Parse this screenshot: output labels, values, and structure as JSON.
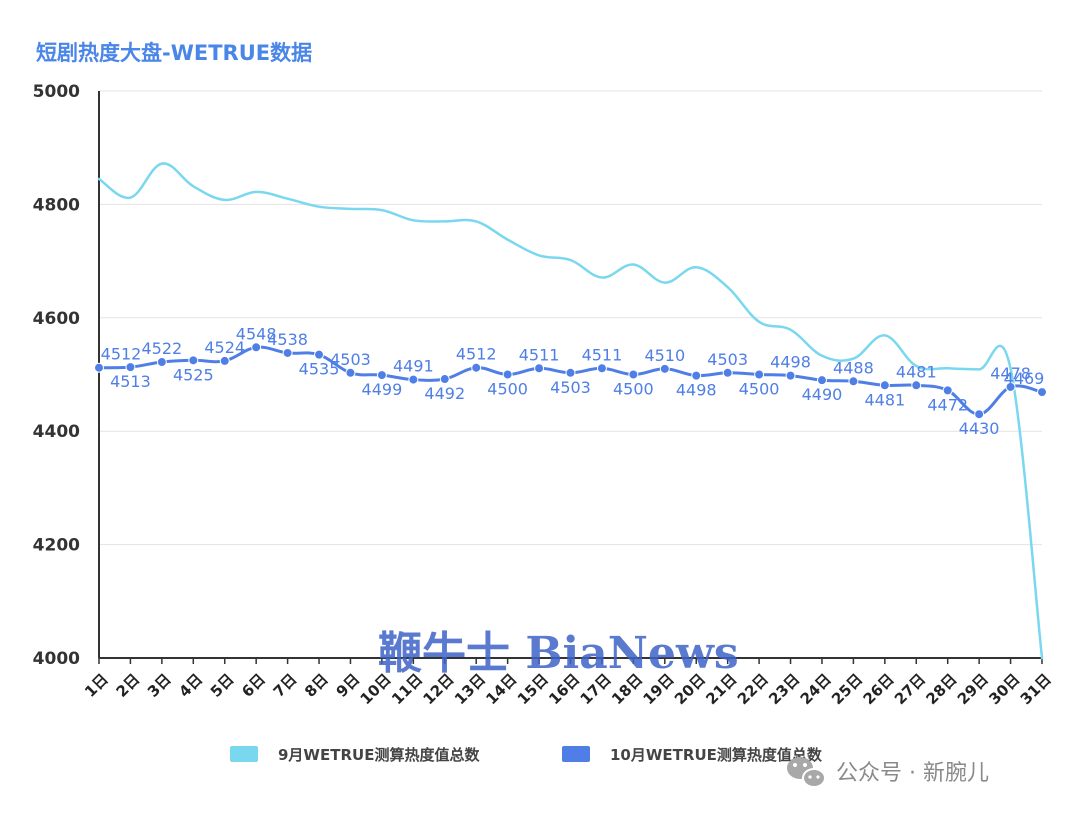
{
  "chart_data": {
    "type": "line",
    "title": "短剧热度大盘-WETRUE数据",
    "xlabel": "",
    "ylabel": "",
    "ylim": [
      4000,
      5000
    ],
    "yticks": [
      4000,
      4200,
      4400,
      4600,
      4800,
      5000
    ],
    "grid": true,
    "legend_position": "bottom",
    "categories": [
      "1日",
      "2日",
      "3日",
      "4日",
      "5日",
      "6日",
      "7日",
      "8日",
      "9日",
      "10日",
      "11日",
      "12日",
      "13日",
      "14日",
      "15日",
      "16日",
      "17日",
      "18日",
      "19日",
      "20日",
      "21日",
      "22日",
      "23日",
      "24日",
      "25日",
      "26日",
      "27日",
      "28日",
      "29日",
      "30日",
      "31日"
    ],
    "series": [
      {
        "name": "9月WETRUE测算热度值总数",
        "color": "#7ad7f0",
        "values": [
          4845,
          4812,
          4872,
          4832,
          4808,
          4822,
          4810,
          4796,
          4792,
          4790,
          4772,
          4770,
          4770,
          4738,
          4710,
          4702,
          4671,
          4694,
          4662,
          4689,
          4654,
          4593,
          4579,
          4533,
          4528,
          4569,
          4515,
          4511,
          4509,
          4510,
          4000
        ],
        "show_markers": false
      },
      {
        "name": "10月WETRUE测算热度值总数",
        "color": "#4f7fe6",
        "values": [
          4512,
          4513,
          4522,
          4525,
          4524,
          4548,
          4538,
          4535,
          4503,
          4499,
          4491,
          4492,
          4512,
          4500,
          4511,
          4503,
          4511,
          4500,
          4510,
          4498,
          4503,
          4500,
          4498,
          4490,
          4488,
          4481,
          4481,
          4472,
          4430,
          4478,
          4469
        ],
        "label_values": [
          "4512",
          "4513",
          "4522",
          "4525",
          "4524",
          "4548",
          "4538",
          "4535",
          "4503",
          "4499",
          "4491",
          "4492",
          "4512",
          "4500",
          "4511",
          "4503",
          "4511",
          "4500",
          "4510",
          "4498",
          "4503",
          "4500",
          "4498",
          "4490",
          "4488",
          "4481",
          "4481",
          "4472",
          "4430",
          "4478",
          "4469"
        ],
        "label_pos": [
          "a",
          "b",
          "a",
          "b",
          "a",
          "a",
          "a",
          "b",
          "a",
          "b",
          "a",
          "b",
          "a",
          "b",
          "a",
          "b",
          "a",
          "b",
          "a",
          "b",
          "a",
          "b",
          "a",
          "b",
          "a",
          "b",
          "a",
          "b",
          "b",
          "a",
          "a"
        ],
        "show_markers": true
      }
    ]
  },
  "watermark": {
    "text": "鞭牛士 BiaNews",
    "color": "#3d63c8"
  },
  "footer": {
    "icon": "wechat-icon",
    "text": "公众号 · 新腕儿"
  },
  "colors": {
    "title": "#4a86e8",
    "grid": "#e3e3e3",
    "axis": "#333333"
  }
}
